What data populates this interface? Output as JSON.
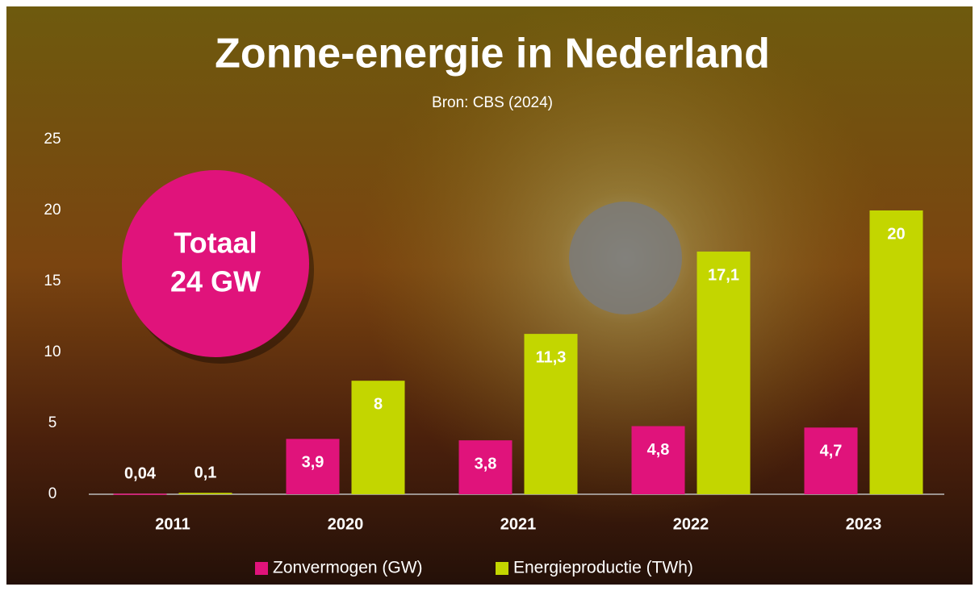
{
  "chart_data": {
    "type": "bar",
    "title": "Zonne-energie in Nederland",
    "subtitle": "Bron: CBS (2024)",
    "annotation": [
      "Totaal",
      "24 GW"
    ],
    "categories": [
      "2011",
      "2020",
      "2021",
      "2022",
      "2023"
    ],
    "series": [
      {
        "name": "Zonvermogen (GW)",
        "color": "#e0137b",
        "values": [
          0.04,
          3.9,
          3.8,
          4.8,
          4.7
        ],
        "value_labels": [
          "0,04",
          "3,9",
          "3,8",
          "4,8",
          "4,7"
        ]
      },
      {
        "name": "Energieproductie (TWh)",
        "color": "#c3d600",
        "values": [
          0.1,
          8,
          11.3,
          17.1,
          20
        ],
        "value_labels": [
          "0,1",
          "8",
          "11,3",
          "17,1",
          "20"
        ]
      }
    ],
    "ylim": [
      0,
      25
    ],
    "yticks": [
      0,
      5,
      10,
      15,
      20,
      25
    ],
    "grid": false,
    "legend": "bottom"
  }
}
